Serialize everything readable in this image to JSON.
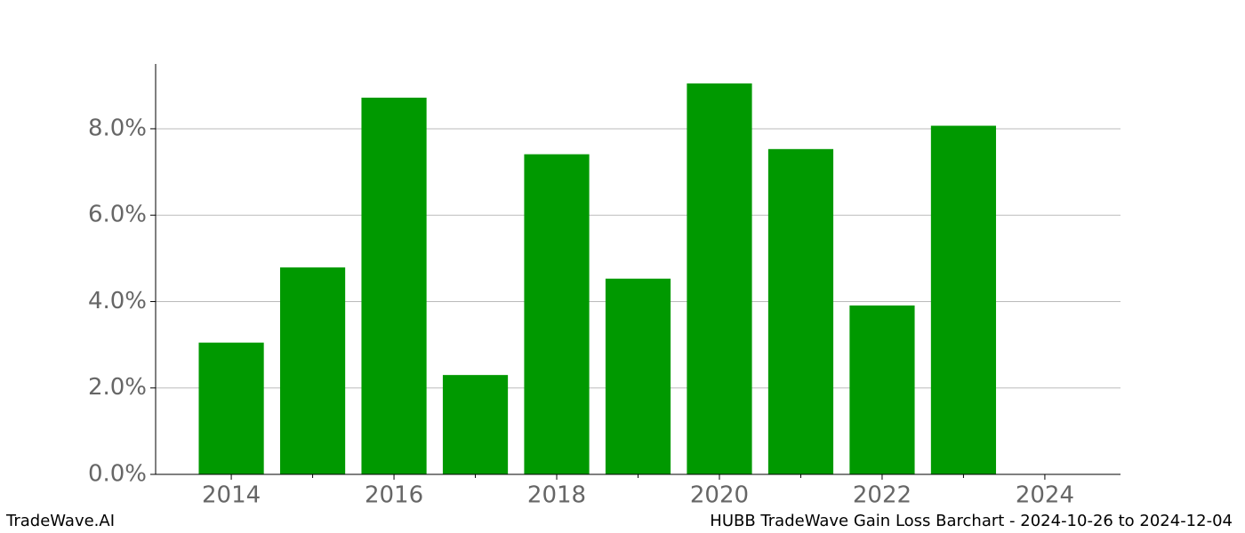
{
  "chart_data": {
    "type": "bar",
    "x": [
      2014,
      2015,
      2016,
      2017,
      2018,
      2019,
      2020,
      2021,
      2022,
      2023
    ],
    "values": [
      3.05,
      4.79,
      8.72,
      2.3,
      7.41,
      4.53,
      9.05,
      7.53,
      3.91,
      8.07
    ],
    "color": "#009900",
    "xlim": [
      2013.07,
      2024.93
    ],
    "xticks": [
      2014,
      2016,
      2018,
      2020,
      2022,
      2024
    ],
    "xminorticks": [
      2015,
      2017,
      2019,
      2021,
      2023
    ],
    "ylim": [
      0,
      9.5
    ],
    "yticks": [
      {
        "value": 0,
        "label": "0.0%"
      },
      {
        "value": 2,
        "label": "2.0%"
      },
      {
        "value": 4,
        "label": "4.0%"
      },
      {
        "value": 6,
        "label": "6.0%"
      },
      {
        "value": 8,
        "label": "8.0%"
      }
    ],
    "grid": true,
    "brand": "TradeWave.AI",
    "caption": "HUBB TradeWave Gain Loss Barchart - 2024-10-26 to 2024-12-04"
  }
}
